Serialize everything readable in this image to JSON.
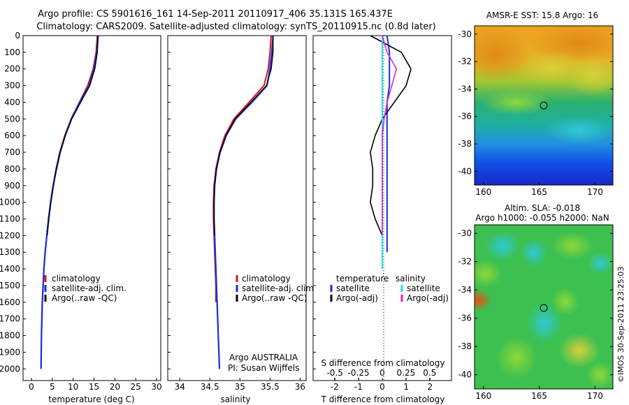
{
  "title": {
    "line1": "Argo profile: CS 5901616_161 14-Sep-2011 20110917_406 35.131S 165.437E",
    "line2": "Climatology: CARS2009. Satellite-adjusted climatology: synTS_20110915.nc (0.8d later)"
  },
  "colors": {
    "climatology": "#e01010",
    "satellite": "#1030e0",
    "argo": "#000000",
    "sal_satellite": "#20e0e0",
    "sal_argo": "#e020e0"
  },
  "depth_axis": {
    "ticks": [
      "0",
      "100",
      "200",
      "300",
      "400",
      "500",
      "600",
      "700",
      "800",
      "900",
      "1000",
      "1100",
      "1200",
      "1300",
      "1400",
      "1500",
      "1600",
      "1700",
      "1800",
      "1900",
      "2000"
    ]
  },
  "panel_temp": {
    "xlabel": "temperature (deg C)",
    "xticks": [
      "0",
      "5",
      "10",
      "15",
      "20",
      "25",
      "30"
    ],
    "legend": [
      "climatology",
      "satellite-adj. clim.",
      "Argo(..raw -QC)"
    ]
  },
  "panel_sal": {
    "xlabel": "salinity",
    "xticks": [
      "34",
      "34.5",
      "35",
      "35.5",
      "36"
    ],
    "legend": [
      "climatology",
      "satellite-adj. clim.",
      "Argo(..raw -QC)"
    ],
    "note1": "Argo AUSTRALIA",
    "note2": "PI: Susan Wijffels"
  },
  "panel_diff": {
    "xlabel": "T difference from climatology",
    "xticks": [
      "-2",
      "-1",
      "0",
      "1",
      "2"
    ],
    "xlabel2": "S difference from climatology",
    "xticks2": [
      "-0.5",
      "-0.25",
      "0",
      "0.25",
      "0.5"
    ],
    "legend_temp_head": "temperature",
    "legend_sal_head": "salinity",
    "legend_temp": [
      "satellite",
      "Argo(-adj)"
    ],
    "legend_sal": [
      "satellite",
      "Argo(-adj)"
    ]
  },
  "map_sst": {
    "title": "AMSR-E SST: 15.8 Argo: 16",
    "yticks": [
      "-30",
      "-32",
      "-34",
      "-36",
      "-38",
      "-40"
    ],
    "xticks": [
      "160",
      "165",
      "170"
    ]
  },
  "map_sla": {
    "title1": "Altim. SLA: -0.018",
    "title2": "Argo h1000: -0.055 h2000: NaN",
    "yticks": [
      "-30",
      "-32",
      "-34",
      "-36",
      "-38",
      "-40"
    ],
    "xticks": [
      "160",
      "165",
      "170"
    ]
  },
  "stamp": "©IMOS 30-Sep-2011 23:25:03",
  "chart_data": [
    {
      "type": "line",
      "title": "",
      "xlabel": "temperature (deg C)",
      "ylabel": "",
      "xlim": [
        -2,
        31
      ],
      "ylim": [
        2070,
        0
      ],
      "series": [
        {
          "name": "climatology",
          "x": [
            15.8,
            15.5,
            14.8,
            13.5,
            11.5,
            9.5,
            8.0,
            6.8,
            5.9,
            5.2,
            4.6,
            4.1,
            3.7,
            3.3,
            3.0,
            2.8,
            2.6,
            2.5
          ],
          "y": [
            0,
            100,
            200,
            300,
            400,
            500,
            600,
            700,
            800,
            900,
            1000,
            1100,
            1200,
            1300,
            1400,
            1500,
            1600,
            1700
          ]
        },
        {
          "name": "satellite-adj. clim.",
          "x": [
            16.0,
            15.7,
            15.0,
            13.8,
            11.6,
            9.6,
            8.1,
            6.9,
            6.0,
            5.2,
            4.6,
            4.1,
            3.7,
            3.3,
            3.0,
            2.8,
            2.6,
            2.5,
            2.4,
            2.35,
            2.3
          ],
          "y": [
            0,
            100,
            200,
            300,
            400,
            500,
            600,
            700,
            800,
            900,
            1000,
            1100,
            1200,
            1300,
            1400,
            1500,
            1600,
            1700,
            1800,
            1900,
            2000
          ]
        },
        {
          "name": "Argo(..raw -QC)",
          "x": [
            15.9,
            15.8,
            15.2,
            14.0,
            11.8,
            9.7,
            8.1,
            6.9,
            6.0,
            5.3,
            4.7,
            4.2,
            3.8
          ],
          "y": [
            0,
            100,
            200,
            300,
            400,
            500,
            600,
            700,
            800,
            900,
            1000,
            1100,
            1200
          ]
        }
      ]
    },
    {
      "type": "line",
      "title": "",
      "xlabel": "salinity",
      "ylabel": "",
      "xlim": [
        33.8,
        36.1
      ],
      "ylim": [
        2070,
        0
      ],
      "series": [
        {
          "name": "climatology",
          "x": [
            35.52,
            35.5,
            35.47,
            35.4,
            35.15,
            34.9,
            34.75,
            34.66,
            34.6,
            34.57,
            34.56,
            34.56,
            34.57,
            34.58,
            34.59,
            34.6,
            34.6
          ],
          "y": [
            0,
            100,
            200,
            300,
            400,
            500,
            600,
            700,
            800,
            900,
            1000,
            1100,
            1200,
            1300,
            1400,
            1500,
            1600
          ]
        },
        {
          "name": "satellite-adj. clim.",
          "x": [
            35.55,
            35.53,
            35.5,
            35.45,
            35.2,
            34.93,
            34.77,
            34.67,
            34.61,
            34.58,
            34.57,
            34.57,
            34.58,
            34.59,
            34.6,
            34.61,
            34.62,
            34.63,
            34.64,
            34.65,
            34.66
          ],
          "y": [
            0,
            100,
            200,
            300,
            400,
            500,
            600,
            700,
            800,
            900,
            1000,
            1100,
            1200,
            1300,
            1400,
            1500,
            1600,
            1700,
            1800,
            1900,
            2000
          ]
        },
        {
          "name": "Argo(..raw -QC)",
          "x": [
            35.55,
            35.55,
            35.52,
            35.44,
            35.18,
            34.92,
            34.77,
            34.67,
            34.61,
            34.58,
            34.57,
            34.57,
            34.58
          ],
          "y": [
            0,
            100,
            200,
            300,
            400,
            500,
            600,
            700,
            800,
            900,
            1000,
            1100,
            1200
          ]
        }
      ]
    },
    {
      "type": "line",
      "title": "",
      "xlabel": "T difference from climatology",
      "ylabel": "",
      "xlim": [
        -2.9,
        2.9
      ],
      "ylim": [
        2070,
        0
      ],
      "series": [
        {
          "name": "satellite",
          "x": [
            0.2,
            0.3,
            0.3,
            0.3,
            0.2,
            0.2,
            0.2,
            0.2,
            0.2,
            0.2,
            0.2,
            0.2,
            0.2,
            0.2
          ],
          "y": [
            0,
            100,
            200,
            300,
            400,
            500,
            600,
            700,
            800,
            900,
            1000,
            1100,
            1200,
            1300
          ]
        },
        {
          "name": "Argo(-adj)",
          "x": [
            -0.5,
            0.8,
            1.2,
            1.0,
            0.5,
            0.0,
            -0.3,
            -0.5,
            -0.4,
            -0.4,
            -0.5,
            -0.3,
            0.0
          ],
          "y": [
            0,
            100,
            200,
            300,
            400,
            500,
            600,
            700,
            800,
            900,
            1000,
            1100,
            1200
          ]
        }
      ]
    },
    {
      "type": "line",
      "title": "",
      "xlabel": "S difference from climatology",
      "ylabel": "",
      "xlim": [
        -0.73,
        0.73
      ],
      "ylim": [
        2070,
        0
      ],
      "series": [
        {
          "name": "satellite",
          "x": [
            0.0,
            0.0,
            0.0,
            0.0,
            0.0,
            0.0,
            0.0,
            0.0,
            0.0,
            0.0,
            0.0,
            0.0,
            0.0,
            0.0,
            0.0
          ],
          "y": [
            0,
            100,
            200,
            300,
            400,
            500,
            600,
            700,
            800,
            900,
            1000,
            1100,
            1200,
            1300,
            1400
          ]
        },
        {
          "name": "Argo(-adj)",
          "x": [
            0.0,
            0.05,
            0.15,
            0.1,
            0.05,
            0.02,
            0.0,
            0.0,
            0.0,
            0.0,
            0.0,
            0.0,
            0.0
          ],
          "y": [
            0,
            100,
            200,
            300,
            400,
            500,
            600,
            700,
            800,
            900,
            1000,
            1100,
            1200
          ]
        }
      ]
    }
  ]
}
